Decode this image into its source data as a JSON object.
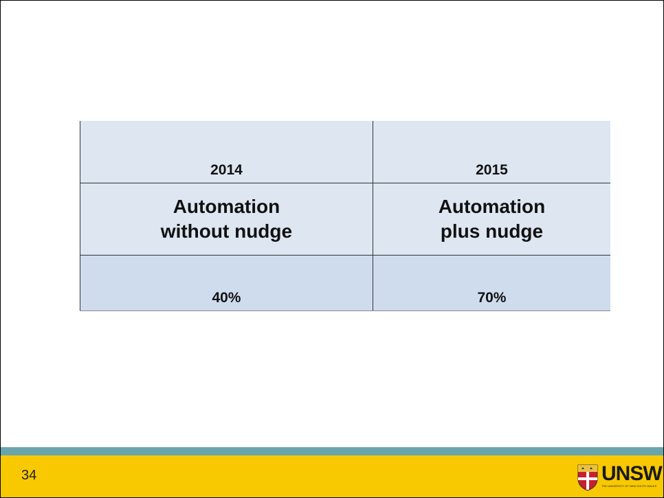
{
  "table": {
    "header": [
      "2014",
      "2015"
    ],
    "rows": [
      [
        "Automation\nwithout nudge",
        "Automation\nplus nudge"
      ],
      [
        "40%",
        "70%"
      ]
    ]
  },
  "footer": {
    "page_number": "34",
    "logo": "UNSW",
    "logo_subtitle": "THE UNIVERSITY OF NEW SOUTH WALES"
  }
}
